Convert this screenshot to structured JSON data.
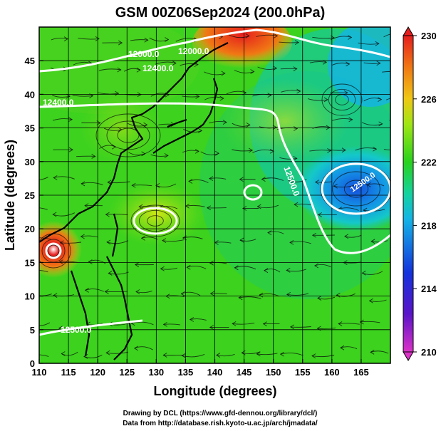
{
  "title": "GSM 00Z06Sep2024 (200.0hPa)",
  "xlabel": "Longitude (degrees)",
  "ylabel": "Latitude  (degrees)",
  "x_ticks": [
    "110",
    "115",
    "120",
    "125",
    "130",
    "135",
    "140",
    "145",
    "150",
    "155",
    "160",
    "165"
  ],
  "y_ticks": [
    "0",
    "5",
    "10",
    "15",
    "20",
    "25",
    "30",
    "35",
    "40",
    "45"
  ],
  "colorbar_ticks": [
    "230",
    "226",
    "222",
    "218",
    "214",
    "210"
  ],
  "contour_labels": [
    "12000.0",
    "12000.0",
    "12400.0",
    "12400.0",
    "12500.0",
    "12500.0",
    "12500.0"
  ],
  "credit_line1": "Drawing by DCL (https://www.gfd-dennou.org/library/dcl/)",
  "credit_line2": "Data from http://database.rish.kyoto-u.ac.jp/arch/jmadata/",
  "chart_data": {
    "type": "heatmap",
    "xlim": [
      110,
      170
    ],
    "ylim": [
      0,
      50
    ],
    "colorbar_range": [
      210,
      230
    ],
    "colors": {
      "background_green": "#3cd21e",
      "yellow_green": "#b4e614",
      "cyan": "#14c8dc",
      "blue": "#1450dc",
      "orange": "#f09614",
      "red": "#e61e1e",
      "magenta": "#dc32c8"
    }
  }
}
